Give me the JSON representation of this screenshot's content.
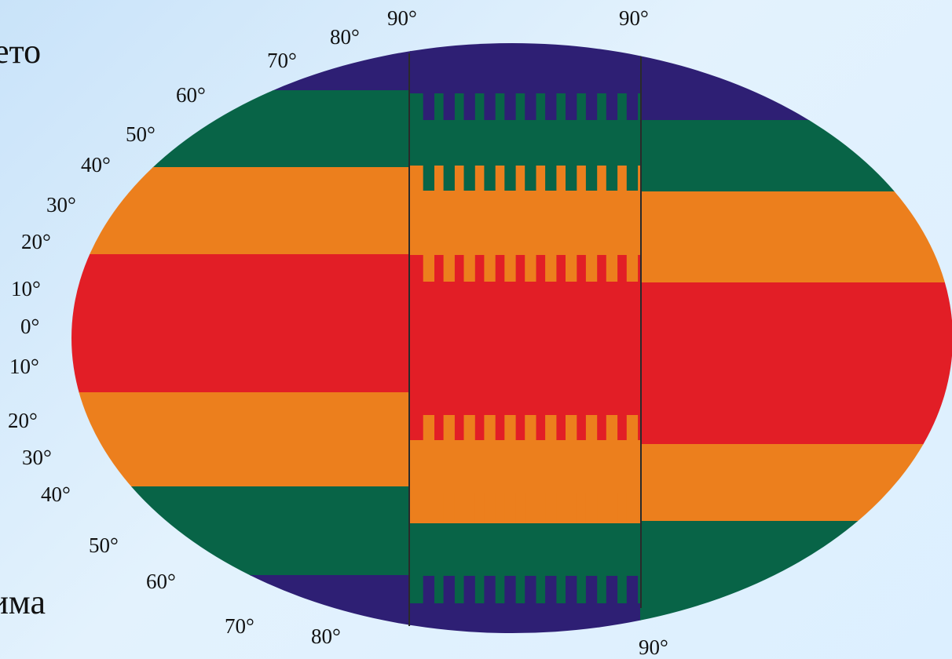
{
  "season_labels": {
    "top": "лето",
    "bottom": "зима"
  },
  "latitude_labels_left": [
    "80°",
    "70°",
    "60°",
    "50°",
    "40°",
    "30°",
    "20°",
    "10°",
    "0°",
    "10°",
    "20°",
    "30°",
    "40°",
    "50°",
    "60°",
    "70°",
    "80°"
  ],
  "meridian_labels": [
    "90°",
    "90°",
    "90°"
  ],
  "zones": [
    {
      "id": "polar",
      "color": "#2e1f74"
    },
    {
      "id": "temperate",
      "color": "#086447"
    },
    {
      "id": "subtropical",
      "color": "#ec7f1d"
    },
    {
      "id": "tropical",
      "color": "#e21e26"
    }
  ]
}
